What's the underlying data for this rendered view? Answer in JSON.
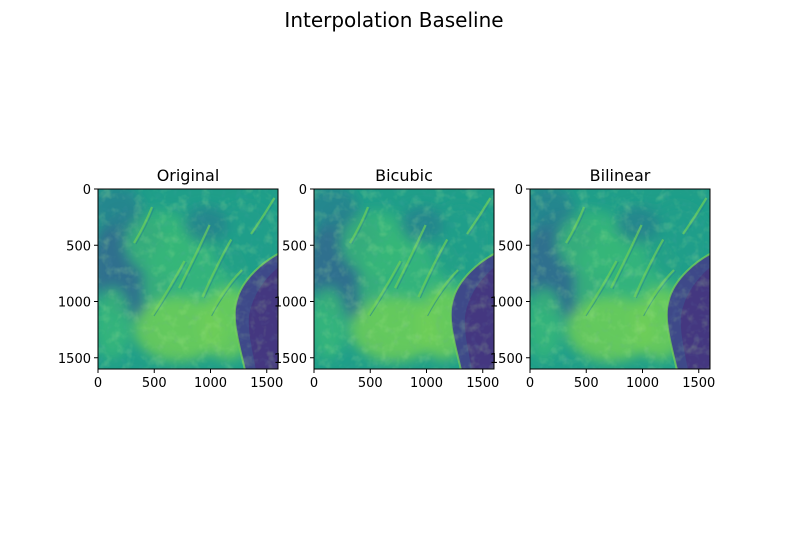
{
  "figure": {
    "title": "Interpolation Baseline"
  },
  "colormap": {
    "name": "viridis",
    "stops": [
      "#440154",
      "#482878",
      "#3e4989",
      "#31688e",
      "#26828e",
      "#1f9e89",
      "#35b779",
      "#6ece58",
      "#b5de2b",
      "#fde725"
    ]
  },
  "chart_data": [
    {
      "type": "heatmap",
      "title": "Original",
      "xlabel": "",
      "ylabel": "",
      "xlim": [
        0,
        1600
      ],
      "ylim": [
        1600,
        0
      ],
      "xticks": [
        0,
        500,
        1000,
        1500
      ],
      "yticks": [
        0,
        500,
        1000,
        1500
      ],
      "xtick_labels": [
        "0",
        "500",
        "1000",
        "1500"
      ],
      "ytick_labels": [
        "0",
        "500",
        "1000",
        "1500"
      ],
      "grid": false
    },
    {
      "type": "heatmap",
      "title": "Bicubic",
      "xlabel": "",
      "ylabel": "",
      "xlim": [
        0,
        1600
      ],
      "ylim": [
        1600,
        0
      ],
      "xticks": [
        0,
        500,
        1000,
        1500
      ],
      "yticks": [
        0,
        500,
        1000,
        1500
      ],
      "xtick_labels": [
        "0",
        "500",
        "1000",
        "1500"
      ],
      "ytick_labels": [
        "0",
        "500",
        "1000",
        "1500"
      ],
      "grid": false
    },
    {
      "type": "heatmap",
      "title": "Bilinear",
      "xlabel": "",
      "ylabel": "",
      "xlim": [
        0,
        1600
      ],
      "ylim": [
        1600,
        0
      ],
      "xticks": [
        0,
        500,
        1000,
        1500
      ],
      "yticks": [
        0,
        500,
        1000,
        1500
      ],
      "xtick_labels": [
        "0",
        "500",
        "1000",
        "1500"
      ],
      "ytick_labels": [
        "0",
        "500",
        "1000",
        "1500"
      ],
      "grid": false
    }
  ]
}
